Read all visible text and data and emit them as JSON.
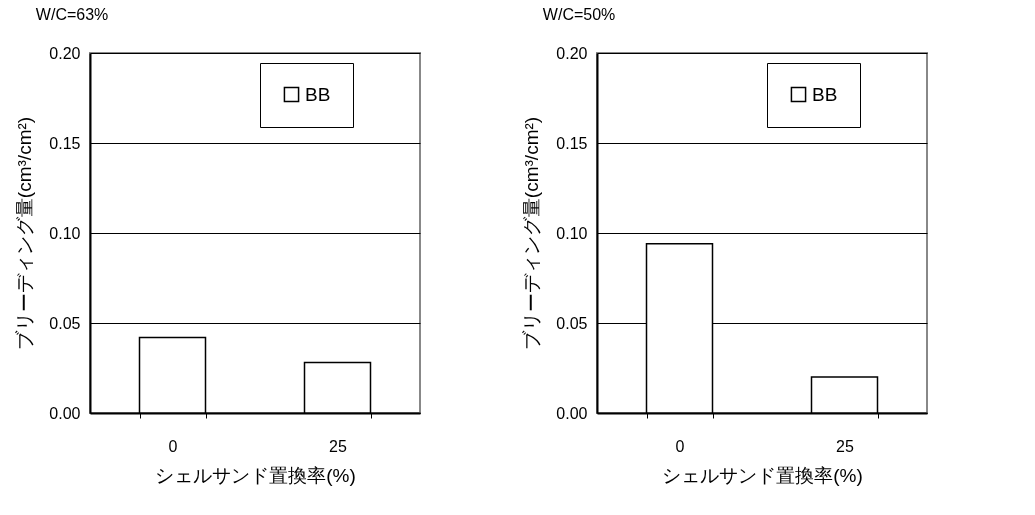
{
  "chart_data": [
    {
      "type": "bar",
      "title": "W/C=63%",
      "xlabel": "シェルサンド置換率(%)",
      "ylabel": "ブリーディング量(cm³/cm²)",
      "categories": [
        "0",
        "25"
      ],
      "series": [
        {
          "name": "BB",
          "color": "#ffffff",
          "values": [
            0.042,
            0.028
          ]
        }
      ],
      "ylim": [
        0,
        0.2
      ],
      "yticks": [
        {
          "value": 0,
          "label": "0.00"
        },
        {
          "value": 0.05,
          "label": "0.05"
        },
        {
          "value": 0.1,
          "label": "0.10"
        },
        {
          "value": 0.15,
          "label": "0.15"
        },
        {
          "value": 0.2,
          "label": "0.20"
        }
      ],
      "grid": "y",
      "legend": "top right"
    },
    {
      "type": "bar",
      "title": "W/C=50%",
      "xlabel": "シェルサンド置換率(%)",
      "ylabel": "ブリーディング量(cm³/cm²)",
      "categories": [
        "0",
        "25"
      ],
      "series": [
        {
          "name": "BB",
          "color": "#ffffff",
          "values": [
            0.094,
            0.02
          ]
        }
      ],
      "ylim": [
        0,
        0.2
      ],
      "yticks": [
        {
          "value": 0,
          "label": "0.00"
        },
        {
          "value": 0.05,
          "label": "0.05"
        },
        {
          "value": 0.1,
          "label": "0.10"
        },
        {
          "value": 0.15,
          "label": "0.15"
        },
        {
          "value": 0.2,
          "label": "0.20"
        }
      ],
      "grid": "y",
      "legend": "top right"
    }
  ]
}
